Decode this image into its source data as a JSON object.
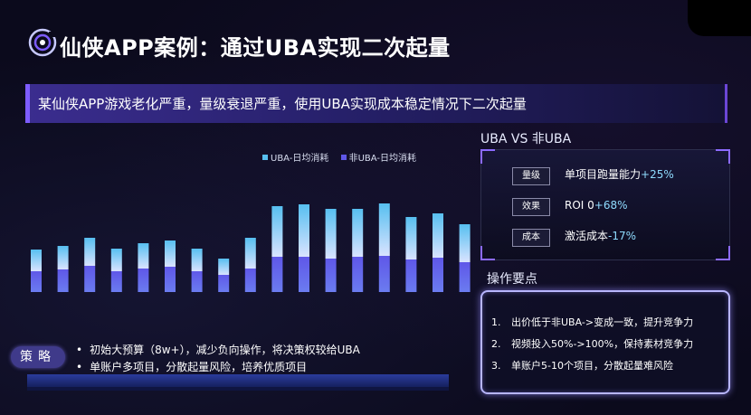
{
  "header": {
    "title": "仙侠APP案例：通过UBA实现二次起量"
  },
  "banner": {
    "text": "某仙侠APP游戏老化严重，量级衰退严重，使用UBA实现成本稳定情况下二次起量"
  },
  "colors": {
    "uba": "#57bff0",
    "non_uba": "#5f57e8",
    "accent": "#8c6bff",
    "metric_value": "#8fdcff"
  },
  "chart_data": {
    "type": "bar",
    "stacked": true,
    "series": [
      {
        "name": "UBA-日均消耗",
        "values": [
          24,
          26,
          31,
          25,
          28,
          29,
          25,
          18,
          34,
          56,
          58,
          55,
          53,
          58,
          47,
          49,
          42
        ]
      },
      {
        "name": "非UBA-日均消耗",
        "values": [
          23,
          25,
          29,
          23,
          26,
          28,
          23,
          19,
          26,
          39,
          39,
          37,
          39,
          40,
          36,
          38,
          33
        ]
      }
    ],
    "legend": "top",
    "grid": false
  },
  "comparison": {
    "title": "UBA VS 非UBA",
    "metrics": [
      {
        "tag": "量级",
        "label": "单项目跑量能力",
        "value": "+25%"
      },
      {
        "tag": "效果",
        "label": "ROI 0",
        "value": "+68%"
      },
      {
        "tag": "成本",
        "label": "激活成本",
        "value": "-17%"
      }
    ]
  },
  "operations": {
    "title": "操作要点",
    "items": [
      {
        "num": "1.",
        "text": "出价低于非UBA->变成一致，提升竞争力"
      },
      {
        "num": "2.",
        "text": "视频投入50%->100%，保持素材竞争力"
      },
      {
        "num": "3.",
        "text": "单账户5-10个项目，分散起量难风险"
      }
    ]
  },
  "strategy": {
    "badge": "策略",
    "items": [
      "初始大预算（8w+），减少负向操作，将决策权较给UBA",
      "单账户多项目，分散起量风险，培养优质项目"
    ]
  }
}
